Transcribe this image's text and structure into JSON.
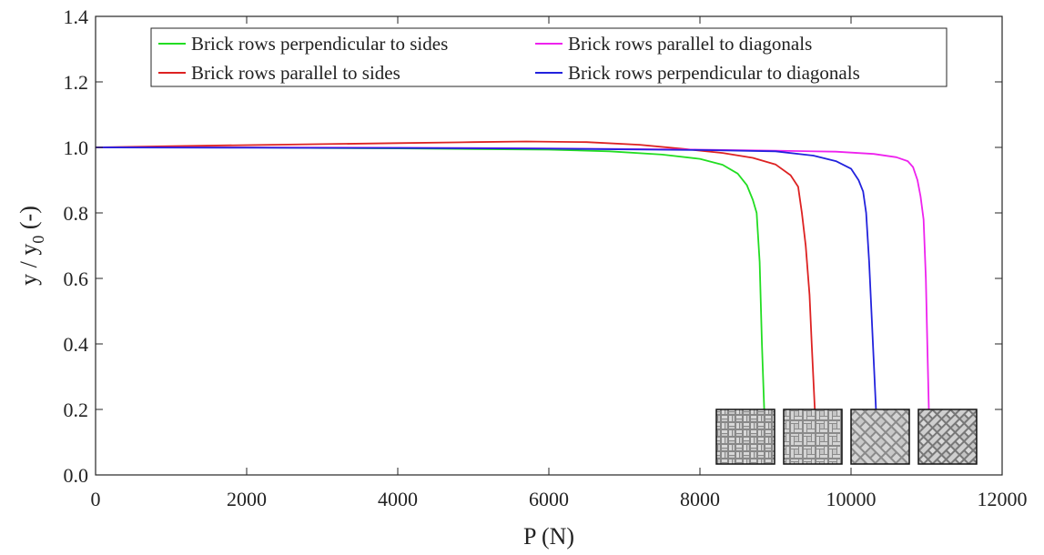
{
  "chart_data": {
    "type": "line",
    "title": "",
    "xlabel": "P (N)",
    "ylabel_parts": {
      "pre": "y / y",
      "sub": "0",
      "post": " (-)"
    },
    "xlim": [
      0,
      12000
    ],
    "ylim": [
      0,
      1.4
    ],
    "x_ticks": [
      0,
      2000,
      4000,
      6000,
      8000,
      10000,
      12000
    ],
    "x_tick_labels": [
      "0",
      "2000",
      "4000",
      "6000",
      "8000",
      "10000",
      "12000"
    ],
    "y_ticks": [
      0,
      0.2,
      0.4,
      0.6,
      0.8,
      1.0,
      1.2,
      1.4
    ],
    "y_tick_labels": [
      "0.0",
      "0.2",
      "0.4",
      "0.6",
      "0.8",
      "1.0",
      "1.2",
      "1.4"
    ],
    "grid": false,
    "legend_position": "top",
    "series": [
      {
        "name": "Brick rows perpendicular to sides",
        "color": "#22dd22",
        "x": [
          0,
          1000,
          2000,
          3000,
          4000,
          5000,
          6000,
          6800,
          7500,
          8000,
          8300,
          8500,
          8620,
          8700,
          8750,
          8790,
          8820,
          8850
        ],
        "y": [
          1.0,
          1.0,
          1.0,
          0.998,
          0.997,
          0.995,
          0.993,
          0.988,
          0.978,
          0.965,
          0.947,
          0.92,
          0.885,
          0.84,
          0.8,
          0.65,
          0.4,
          0.2
        ]
      },
      {
        "name": "Brick rows parallel to sides",
        "color": "#dd2222",
        "x": [
          0,
          1000,
          2000,
          3000,
          4000,
          5000,
          5700,
          6500,
          7200,
          7800,
          8300,
          8700,
          9000,
          9200,
          9300,
          9350,
          9400,
          9450,
          9480,
          9520
        ],
        "y": [
          1.0,
          1.004,
          1.007,
          1.01,
          1.013,
          1.016,
          1.018,
          1.016,
          1.008,
          0.995,
          0.983,
          0.968,
          0.948,
          0.915,
          0.88,
          0.8,
          0.7,
          0.55,
          0.4,
          0.2
        ]
      },
      {
        "name": "Brick rows parallel to diagonals",
        "color": "#ee22ee",
        "x": [
          0,
          2000,
          4000,
          6000,
          8000,
          9000,
          9800,
          10300,
          10600,
          10750,
          10820,
          10880,
          10920,
          10960,
          10990,
          11010,
          11030
        ],
        "y": [
          1.0,
          1.0,
          0.999,
          0.997,
          0.993,
          0.99,
          0.987,
          0.98,
          0.97,
          0.958,
          0.94,
          0.9,
          0.85,
          0.78,
          0.6,
          0.4,
          0.2
        ]
      },
      {
        "name": "Brick rows perpendicular to diagonals",
        "color": "#2222dd",
        "x": [
          0,
          2000,
          4000,
          6000,
          8000,
          9000,
          9500,
          9800,
          10000,
          10100,
          10160,
          10200,
          10240,
          10270,
          10300,
          10330
        ],
        "y": [
          1.0,
          0.999,
          0.998,
          0.996,
          0.992,
          0.988,
          0.975,
          0.958,
          0.935,
          0.9,
          0.865,
          0.8,
          0.65,
          0.5,
          0.35,
          0.2
        ]
      }
    ],
    "inset_patterns": [
      {
        "label": "perpendicular-to-sides",
        "pattern": "herringbone-square"
      },
      {
        "label": "parallel-to-sides",
        "pattern": "spiral-square"
      },
      {
        "label": "parallel-to-diagonals",
        "pattern": "diagonal-herringbone"
      },
      {
        "label": "perpendicular-to-diagonals",
        "pattern": "diagonal-cross"
      }
    ]
  }
}
